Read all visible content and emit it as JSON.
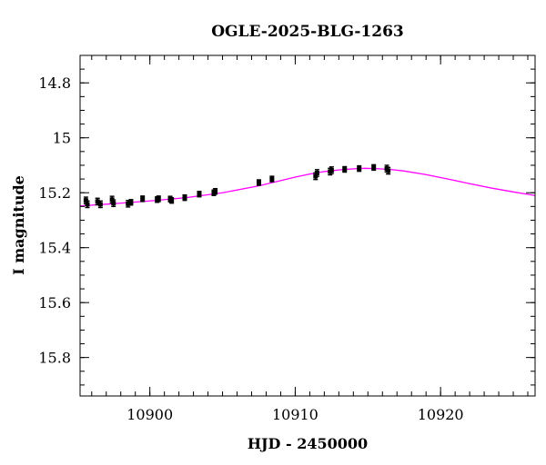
{
  "chart_data": {
    "type": "scatter",
    "title": "OGLE-2025-BLG-1263",
    "xlabel": "HJD - 2450000",
    "ylabel": "I magnitude",
    "xlim": [
      10895.2,
      10926.5
    ],
    "ylim": [
      15.94,
      14.7
    ],
    "y_inverted": true,
    "x_major_ticks": [
      10900,
      10910,
      10920
    ],
    "x_minor_step": 1,
    "y_major_ticks": [
      14.8,
      15,
      15.2,
      15.4,
      15.6,
      15.8
    ],
    "y_tick_labels": [
      "14.8",
      "15",
      "15.2",
      "15.4",
      "15.6",
      "15.8"
    ],
    "y_minor_step": 0.05,
    "grid": false,
    "colors": {
      "data": "#000000",
      "model": "#ff00ff"
    },
    "series": [
      {
        "kind": "points",
        "marker": "filled-square-with-errorbars",
        "x": [
          10895.6,
          10895.7,
          10896.4,
          10896.6,
          10897.4,
          10897.5,
          10898.5,
          10898.7,
          10899.5,
          10900.5,
          10900.6,
          10901.4,
          10901.5,
          10902.4,
          10903.4,
          10904.4,
          10904.5,
          10907.5,
          10908.4,
          10911.4,
          10911.5,
          10912.4,
          10912.5,
          10913.4,
          10914.4,
          10915.4,
          10916.3,
          10916.4
        ],
        "y": [
          15.228,
          15.242,
          15.232,
          15.242,
          15.225,
          15.238,
          15.24,
          15.235,
          15.222,
          15.225,
          15.222,
          15.223,
          15.228,
          15.218,
          15.205,
          15.2,
          15.195,
          15.163,
          15.15,
          15.14,
          15.128,
          15.123,
          15.118,
          15.115,
          15.112,
          15.108,
          15.112,
          15.12
        ],
        "yerr": [
          0.012,
          0.012,
          0.012,
          0.012,
          0.012,
          0.012,
          0.012,
          0.01,
          0.01,
          0.01,
          0.01,
          0.01,
          0.01,
          0.01,
          0.01,
          0.01,
          0.01,
          0.01,
          0.01,
          0.012,
          0.012,
          0.012,
          0.012,
          0.01,
          0.01,
          0.01,
          0.012,
          0.012
        ]
      },
      {
        "kind": "model",
        "x": [
          10895.2,
          10897.5,
          10900,
          10902.5,
          10905,
          10907.5,
          10909,
          10910,
          10911,
          10912,
          10913,
          10914,
          10914.8,
          10915.5,
          10916.5,
          10917.5,
          10919,
          10920.5,
          10922,
          10923.5,
          10925,
          10926.5
        ],
        "y": [
          15.248,
          15.24,
          15.23,
          15.218,
          15.2,
          15.175,
          15.156,
          15.143,
          15.132,
          15.123,
          15.117,
          15.113,
          15.111,
          15.112,
          15.115,
          15.121,
          15.134,
          15.15,
          15.167,
          15.183,
          15.197,
          15.21
        ]
      }
    ]
  }
}
